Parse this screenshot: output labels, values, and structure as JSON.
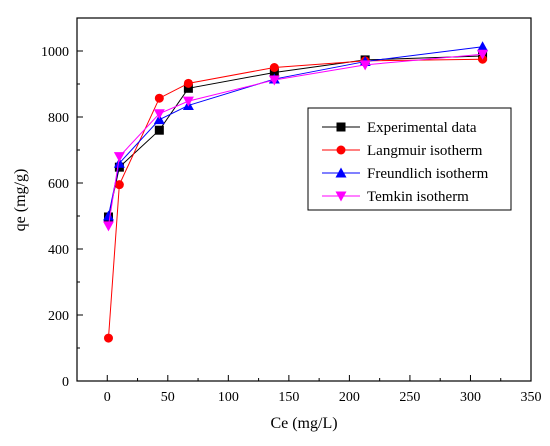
{
  "chart_data": {
    "type": "line",
    "title": "",
    "xlabel": "Ce (mg/L)",
    "ylabel": "qe (mg/g)",
    "xlim": [
      -25,
      350
    ],
    "ylim": [
      0,
      1100
    ],
    "x_ticks": [
      0,
      50,
      100,
      150,
      200,
      250,
      300,
      350
    ],
    "y_ticks": [
      0,
      200,
      400,
      600,
      800,
      1000
    ],
    "grid": false,
    "legend_position": "center-right",
    "series": [
      {
        "name": "Experimental data",
        "color": "#000000",
        "marker": "square",
        "x": [
          1,
          10,
          43,
          67,
          138,
          213,
          310
        ],
        "y": [
          497,
          648,
          760,
          887,
          935,
          973,
          985
        ]
      },
      {
        "name": "Langmuir isotherm",
        "color": "#ff0000",
        "marker": "circle",
        "x": [
          1,
          10,
          43,
          67,
          138,
          213,
          310
        ],
        "y": [
          130,
          595,
          857,
          902,
          950,
          970,
          975
        ]
      },
      {
        "name": "Freundlich isotherm",
        "color": "#0000ff",
        "marker": "triangle-up",
        "x": [
          1,
          10,
          43,
          67,
          138,
          213,
          310
        ],
        "y": [
          500,
          660,
          792,
          835,
          915,
          968,
          1013
        ]
      },
      {
        "name": "Temkin isotherm",
        "color": "#ff00ff",
        "marker": "triangle-down",
        "x": [
          1,
          10,
          43,
          67,
          138,
          213,
          310
        ],
        "y": [
          470,
          680,
          810,
          848,
          912,
          958,
          990
        ]
      }
    ]
  }
}
